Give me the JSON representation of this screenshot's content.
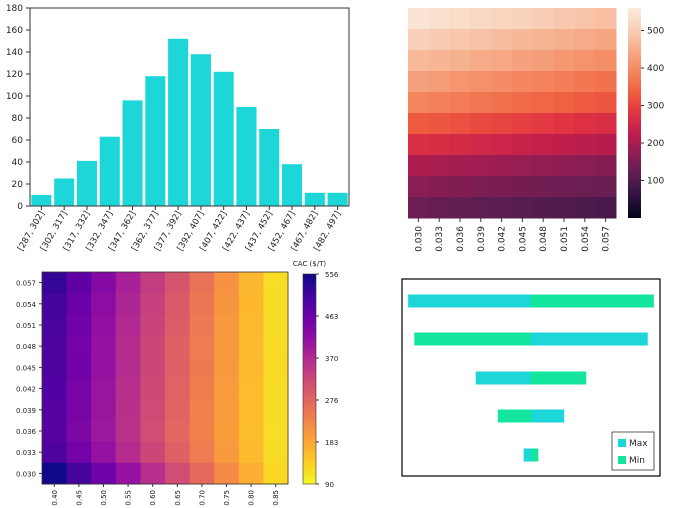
{
  "chart_data": [
    {
      "type": "bar",
      "categories": [
        "[287, 302]",
        "[302, 317]",
        "[317, 332]",
        "[332, 347]",
        "[347, 362]",
        "[362, 377]",
        "[377, 392]",
        "[392, 407]",
        "[407, 422]",
        "[422, 437]",
        "[437, 452]",
        "[452, 467]",
        "[467, 482]",
        "[482, 497]"
      ],
      "values": [
        10,
        25,
        41,
        63,
        96,
        118,
        152,
        138,
        122,
        90,
        70,
        38,
        12,
        12
      ],
      "ylim": [
        0,
        180
      ],
      "yticks": [
        0,
        20,
        40,
        60,
        80,
        100,
        120,
        140,
        160,
        180
      ],
      "bar_color": "#1cd6d8"
    },
    {
      "type": "heatmap",
      "x": [
        "0.030",
        "0.033",
        "0.036",
        "0.039",
        "0.042",
        "0.045",
        "0.048",
        "0.051",
        "0.054",
        "0.057"
      ],
      "rows_top_to_bottom": [
        [
          545,
          538,
          530,
          522,
          515,
          508,
          500,
          492,
          485,
          478
        ],
        [
          505,
          497,
          490,
          482,
          475,
          467,
          460,
          452,
          445,
          437
        ],
        [
          470,
          462,
          455,
          447,
          440,
          432,
          425,
          417,
          410,
          402
        ],
        [
          430,
          422,
          415,
          407,
          400,
          392,
          385,
          377,
          370,
          362
        ],
        [
          390,
          382,
          375,
          367,
          360,
          352,
          345,
          337,
          330,
          322
        ],
        [
          330,
          323,
          316,
          309,
          302,
          295,
          288,
          281,
          274,
          267
        ],
        [
          270,
          264,
          258,
          252,
          246,
          240,
          234,
          228,
          222,
          216
        ],
        [
          205,
          200,
          195,
          190,
          185,
          180,
          175,
          170,
          165,
          160
        ],
        [
          165,
          160,
          155,
          150,
          146,
          142,
          138,
          134,
          130,
          126
        ],
        [
          130,
          125,
          120,
          115,
          111,
          107,
          103,
          99,
          95,
          91
        ]
      ],
      "colorbar": {
        "range": [
          0,
          560
        ],
        "ticks": [
          100,
          200,
          300,
          400,
          500
        ],
        "colormap": "rocket"
      }
    },
    {
      "type": "heatmap",
      "x": [
        "0.40",
        "0.45",
        "0.50",
        "0.55",
        "0.60",
        "0.65",
        "0.70",
        "0.75",
        "0.80",
        "0.85"
      ],
      "y": [
        "0.030",
        "0.033",
        "0.036",
        "0.039",
        "0.042",
        "0.045",
        "0.048",
        "0.051",
        "0.054",
        "0.057"
      ],
      "rows_top_to_bottom": [
        [
          520,
          475,
          430,
          385,
          340,
          300,
          255,
          210,
          165,
          120
        ],
        [
          505,
          462,
          419,
          376,
          333,
          292,
          249,
          206,
          163,
          121
        ],
        [
          500,
          457,
          414,
          371,
          328,
          287,
          245,
          203,
          161,
          122
        ],
        [
          495,
          452,
          409,
          366,
          323,
          282,
          242,
          201,
          160,
          124
        ],
        [
          497,
          454,
          410,
          367,
          324,
          283,
          243,
          202,
          161,
          125
        ],
        [
          490,
          447,
          404,
          361,
          318,
          278,
          238,
          198,
          158,
          122
        ],
        [
          488,
          445,
          402,
          359,
          316,
          276,
          236,
          197,
          157,
          121
        ],
        [
          482,
          440,
          398,
          356,
          314,
          274,
          234,
          195,
          156,
          120
        ],
        [
          495,
          452,
          409,
          366,
          323,
          282,
          242,
          201,
          160,
          123
        ],
        [
          553,
          505,
          457,
          409,
          361,
          314,
          267,
          220,
          173,
          127
        ]
      ],
      "colorbar": {
        "label": "CAC ($/T)",
        "range": [
          90,
          556
        ],
        "ticks": [
          "90",
          "183",
          "276",
          "370",
          "463",
          "556"
        ],
        "colormap": "plasma"
      }
    },
    {
      "type": "bar",
      "orientation": "horizontal",
      "legend": [
        "Max",
        "Min"
      ],
      "legend_position": "bottom-right",
      "series": [
        {
          "name": "Max",
          "color": "#1cd6d8",
          "spans": [
            [
              -100,
              0
            ],
            [
              0,
              95
            ],
            [
              -45,
              0
            ],
            [
              0,
              27
            ],
            [
              -6,
              0
            ]
          ]
        },
        {
          "name": "Min",
          "color": "#13e59c",
          "spans": [
            [
              0,
              100
            ],
            [
              -95,
              0
            ],
            [
              0,
              45
            ],
            [
              -27,
              0
            ],
            [
              0,
              6
            ]
          ]
        }
      ],
      "xlim": [
        -105,
        105
      ]
    }
  ]
}
